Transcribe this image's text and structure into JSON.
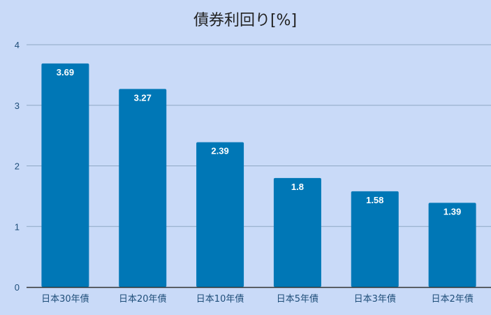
{
  "chart_data": {
    "type": "bar",
    "title": "債券利回り[%]",
    "xlabel": "",
    "ylabel": "",
    "categories": [
      "日本30年債",
      "日本20年債",
      "日本10年債",
      "日本5年債",
      "日本3年債",
      "日本2年債"
    ],
    "values": [
      3.69,
      3.27,
      2.39,
      1.8,
      1.58,
      1.39
    ],
    "data_labels": [
      "3.69",
      "3.27",
      "2.39",
      "1.8",
      "1.58",
      "1.39"
    ],
    "ylim": [
      0,
      4
    ],
    "yticks": [
      "0",
      "1",
      "2",
      "3",
      "4"
    ],
    "grid": true,
    "legend": "none",
    "colors": {
      "bar": "#0077b6",
      "background": "#c9daf8",
      "grid": "#8fa8c4",
      "axis": "#333333"
    }
  }
}
